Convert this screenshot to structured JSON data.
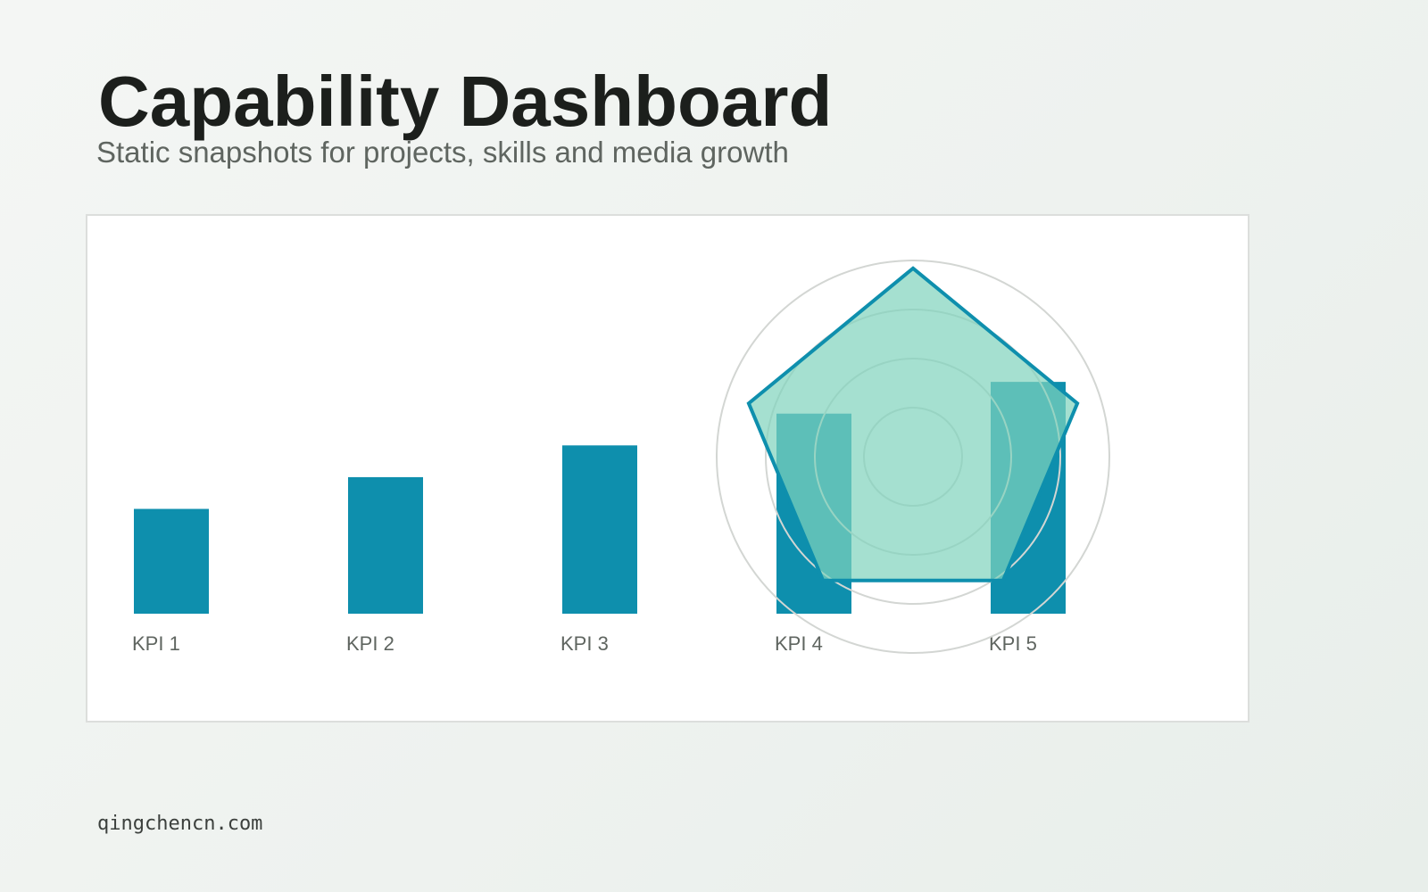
{
  "header": {
    "title": "Capability Dashboard",
    "subtitle": "Static snapshots for projects, skills and media growth"
  },
  "footer": {
    "domain": "qingchencn.com"
  },
  "colors": {
    "bar": "#0e8fad",
    "radar_fill": "#7fd3bc",
    "radar_stroke": "#0e8fad",
    "grid_ring": "#d3d6d3",
    "label": "#5f6560",
    "panel_background": "#ffffff"
  },
  "chart_data": [
    {
      "type": "bar",
      "categories": [
        "KPI 1",
        "KPI 2",
        "KPI 3",
        "KPI 4",
        "KPI 5"
      ],
      "values": [
        33,
        43,
        53,
        63,
        73
      ],
      "ylim": [
        0,
        100
      ],
      "title": "",
      "xlabel": "",
      "ylabel": "",
      "grid": false,
      "legend": "none"
    },
    {
      "type": "radar",
      "axes": 5,
      "values": [
        0.96,
        0.88,
        0.78,
        0.78,
        0.88
      ],
      "range": [
        0,
        1
      ],
      "rings": [
        0.25,
        0.5,
        0.75,
        1.0
      ],
      "overlay": "center-right",
      "title": "",
      "legend": "none"
    }
  ]
}
